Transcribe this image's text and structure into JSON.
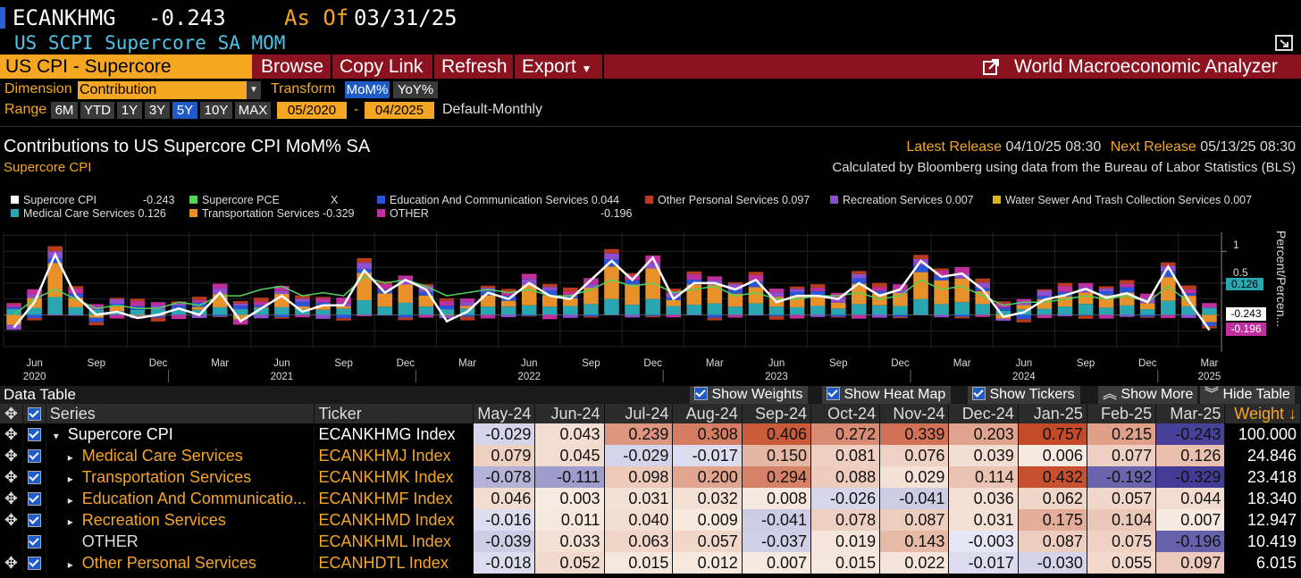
{
  "header": {
    "ticker": "ECANKHMG",
    "value": "-0.243",
    "as_of_label": "As Of",
    "as_of_date": "03/31/25",
    "subtitle": "US SCPI Supercore SA MOM"
  },
  "menu": {
    "panel_title": "US CPI - Supercore",
    "browse": "Browse",
    "copy_link": "Copy Link",
    "refresh": "Refresh",
    "export": "Export",
    "app_title": "World Macroeconomic Analyzer"
  },
  "controls": {
    "dimension_label": "Dimension",
    "dimension_value": "Contribution",
    "transform_label": "Transform",
    "transform_options": [
      "MoM%",
      "YoY%"
    ],
    "range_label": "Range",
    "range_options": [
      "6M",
      "YTD",
      "1Y",
      "3Y",
      "5Y",
      "10Y",
      "MAX"
    ],
    "range_start": "05/2020",
    "range_dash": "-",
    "range_end": "04/2025",
    "frequency": "Default-Monthly"
  },
  "chart_header": {
    "title": "Contributions to US Supercore CPI MoM% SA",
    "subtitle": "Supercore CPI",
    "latest_release_label": "Latest Release",
    "latest_release": "04/10/25 08:30",
    "next_release_label": "Next Release",
    "next_release": "05/13/25 08:30",
    "source": "Calculated by Bloomberg using data from the Bureau of Labor Statistics (BLS)"
  },
  "legend": [
    {
      "name": "Supercore CPI",
      "value": "-0.243",
      "color": "#ffffff"
    },
    {
      "name": "Supercore PCE",
      "value": "X",
      "color": "#4fd35a"
    },
    {
      "name": "Education And Communication Services",
      "value": "0.044",
      "color": "#2a55d6"
    },
    {
      "name": "Other Personal Services",
      "value": "0.097",
      "color": "#b83a1f"
    },
    {
      "name": "Recreation Services",
      "value": "0.007",
      "color": "#8e4fcf"
    },
    {
      "name": "Water Sewer And Trash Collection Services",
      "value": "0.007",
      "color": "#d9b21c"
    },
    {
      "name": "Medical Care Services",
      "value": "0.126",
      "color": "#2aa6b0"
    },
    {
      "name": "Transportation Services",
      "value": "-0.329",
      "color": "#e8912a"
    },
    {
      "name": "OTHER",
      "value": "-0.196",
      "color": "#c02f9e"
    }
  ],
  "chart_data": {
    "type": "bar",
    "title": "Contributions to US Supercore CPI MoM% SA",
    "ylabel": "Percent/Percen...",
    "ylim": [
      -0.5,
      1.3
    ],
    "yticks": [
      1.0,
      0.5
    ],
    "x_month_labels": [
      "Jun",
      "Sep",
      "Dec",
      "Mar",
      "Jun",
      "Sep",
      "Dec",
      "Mar",
      "Jun",
      "Sep",
      "Dec",
      "Mar",
      "Jun",
      "Sep",
      "Dec",
      "Mar",
      "Jun",
      "Sep",
      "Dec",
      "Mar"
    ],
    "x_year_labels": [
      "2020",
      "2021",
      "2022",
      "2023",
      "2024",
      "2025"
    ],
    "months": [
      "May-20",
      "Jun-20",
      "Jul-20",
      "Aug-20",
      "Sep-20",
      "Oct-20",
      "Nov-20",
      "Dec-20",
      "Jan-21",
      "Feb-21",
      "Mar-21",
      "Apr-21",
      "May-21",
      "Jun-21",
      "Jul-21",
      "Aug-21",
      "Sep-21",
      "Oct-21",
      "Nov-21",
      "Dec-21",
      "Jan-22",
      "Feb-22",
      "Mar-22",
      "Apr-22",
      "May-22",
      "Jun-22",
      "Jul-22",
      "Aug-22",
      "Sep-22",
      "Oct-22",
      "Nov-22",
      "Dec-22",
      "Jan-23",
      "Feb-23",
      "Mar-23",
      "Apr-23",
      "May-23",
      "Jun-23",
      "Jul-23",
      "Aug-23",
      "Sep-23",
      "Oct-23",
      "Nov-23",
      "Dec-23",
      "Jan-24",
      "Feb-24",
      "Mar-24",
      "Apr-24",
      "May-24",
      "Jun-24",
      "Jul-24",
      "Aug-24",
      "Sep-24",
      "Oct-24",
      "Nov-24",
      "Dec-24",
      "Jan-25",
      "Feb-25",
      "Mar-25"
    ],
    "supercore_cpi": [
      -0.2,
      0.2,
      0.95,
      0.3,
      0.0,
      0.05,
      -0.05,
      0.0,
      0.1,
      0.0,
      0.35,
      -0.1,
      0.1,
      0.3,
      0.05,
      0.15,
      0.15,
      0.7,
      0.35,
      0.55,
      0.4,
      -0.1,
      0.05,
      0.35,
      0.25,
      0.5,
      0.3,
      0.25,
      0.55,
      0.85,
      0.55,
      0.9,
      0.25,
      0.5,
      0.5,
      0.4,
      0.55,
      0.2,
      0.3,
      0.3,
      0.25,
      0.5,
      0.3,
      0.4,
      0.85,
      0.6,
      0.65,
      0.4,
      -0.03,
      0.04,
      0.24,
      0.31,
      0.41,
      0.27,
      0.34,
      0.2,
      0.76,
      0.22,
      -0.24
    ],
    "supercore_pce": [
      0.0,
      0.25,
      0.4,
      0.25,
      0.1,
      0.15,
      0.1,
      0.1,
      0.2,
      0.15,
      0.3,
      0.3,
      0.4,
      0.45,
      0.3,
      0.35,
      0.3,
      0.6,
      0.5,
      0.55,
      0.45,
      0.3,
      0.35,
      0.4,
      0.35,
      0.4,
      0.3,
      0.3,
      0.4,
      0.55,
      0.45,
      0.5,
      0.35,
      0.4,
      0.45,
      0.3,
      0.35,
      0.25,
      0.25,
      0.3,
      0.3,
      0.35,
      0.25,
      0.3,
      0.55,
      0.4,
      0.45,
      0.3,
      0.15,
      0.2,
      0.2,
      0.25,
      0.3,
      0.25,
      0.3,
      0.2,
      0.45,
      0.2,
      null
    ],
    "series_names": [
      "Medical Care Services",
      "Transportation Services",
      "Education And Communication Services",
      "Recreation Services",
      "OTHER",
      "Other Personal Services"
    ],
    "march_2025_contributions": {
      "Medical Care Services": 0.126,
      "Transportation Services": -0.329,
      "Education And Communication Services": 0.044,
      "Recreation Services": 0.007,
      "OTHER": -0.196,
      "Other Personal Services": 0.097
    },
    "right_labels": [
      "0.126",
      "-0.243",
      "-0.196"
    ]
  },
  "table": {
    "section_title": "Data Table",
    "options": [
      "Show Weights",
      "Show Heat Map",
      "Show Tickers"
    ],
    "show_more": "Show More",
    "hide_table": "Hide Table",
    "headers": {
      "series": "Series",
      "ticker": "Ticker",
      "weight": "Weight"
    },
    "months": [
      "May-24",
      "Jun-24",
      "Jul-24",
      "Aug-24",
      "Sep-24",
      "Oct-24",
      "Nov-24",
      "Dec-24",
      "Jan-25",
      "Feb-25",
      "Mar-25"
    ],
    "rows": [
      {
        "name": "Supercore CPI",
        "ticker": "ECANKHMG Index",
        "values": [
          "-0.029",
          "0.043",
          "0.239",
          "0.308",
          "0.406",
          "0.272",
          "0.339",
          "0.203",
          "0.757",
          "0.215",
          "-0.243"
        ],
        "weight": "100.000",
        "top": true
      },
      {
        "name": "Medical Care Services",
        "ticker": "ECANKHMJ Index",
        "values": [
          "0.079",
          "0.045",
          "-0.029",
          "-0.017",
          "0.150",
          "0.081",
          "0.076",
          "0.039",
          "0.006",
          "0.077",
          "0.126"
        ],
        "weight": "24.846"
      },
      {
        "name": "Transportation Services",
        "ticker": "ECANKHMK Index",
        "values": [
          "-0.078",
          "-0.111",
          "0.098",
          "0.200",
          "0.294",
          "0.088",
          "0.029",
          "0.114",
          "0.432",
          "-0.192",
          "-0.329"
        ],
        "weight": "23.418"
      },
      {
        "name": "Education And Communicatio...",
        "ticker": "ECANKHMF Index",
        "values": [
          "0.046",
          "0.003",
          "0.031",
          "0.032",
          "0.008",
          "-0.026",
          "-0.041",
          "0.036",
          "0.062",
          "0.057",
          "0.044"
        ],
        "weight": "18.340"
      },
      {
        "name": "Recreation Services",
        "ticker": "ECANKHMD Index",
        "values": [
          "-0.016",
          "0.011",
          "0.040",
          "0.009",
          "-0.041",
          "0.078",
          "0.087",
          "0.031",
          "0.175",
          "0.104",
          "0.007"
        ],
        "weight": "12.947"
      },
      {
        "name": "OTHER",
        "ticker": "ECANKHML Index",
        "values": [
          "-0.039",
          "0.033",
          "0.063",
          "0.057",
          "-0.037",
          "0.019",
          "0.143",
          "-0.003",
          "0.087",
          "0.075",
          "-0.196"
        ],
        "weight": "10.419",
        "white": true
      },
      {
        "name": "Other Personal Services",
        "ticker": "ECANHDTL Index",
        "values": [
          "-0.018",
          "0.052",
          "0.015",
          "0.012",
          "0.007",
          "0.015",
          "0.022",
          "-0.017",
          "-0.030",
          "0.055",
          "0.097"
        ],
        "weight": "6.015"
      }
    ]
  },
  "colors": {
    "accent_orange": "#f5a623",
    "menu_red": "#8b1320",
    "active_blue": "#1e5bc6"
  }
}
